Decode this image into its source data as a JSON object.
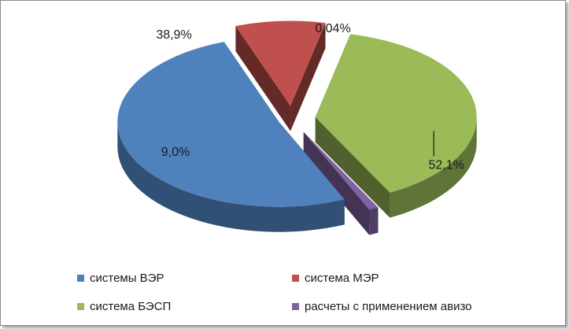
{
  "chart_data": {
    "type": "pie",
    "title": "",
    "style": "3d-exploded",
    "legend_position": "bottom",
    "categories": [
      "системы ВЭР",
      "система МЭР",
      "система БЭСП",
      "расчеты с применением авизо"
    ],
    "values": [
      52.1,
      9.0,
      38.9,
      0.04
    ],
    "labels": [
      "52,1%",
      "9,0%",
      "38,9%",
      "0,04%"
    ],
    "colors": [
      "#4f81bd",
      "#c0504d",
      "#9bbb59",
      "#8064a2"
    ]
  }
}
